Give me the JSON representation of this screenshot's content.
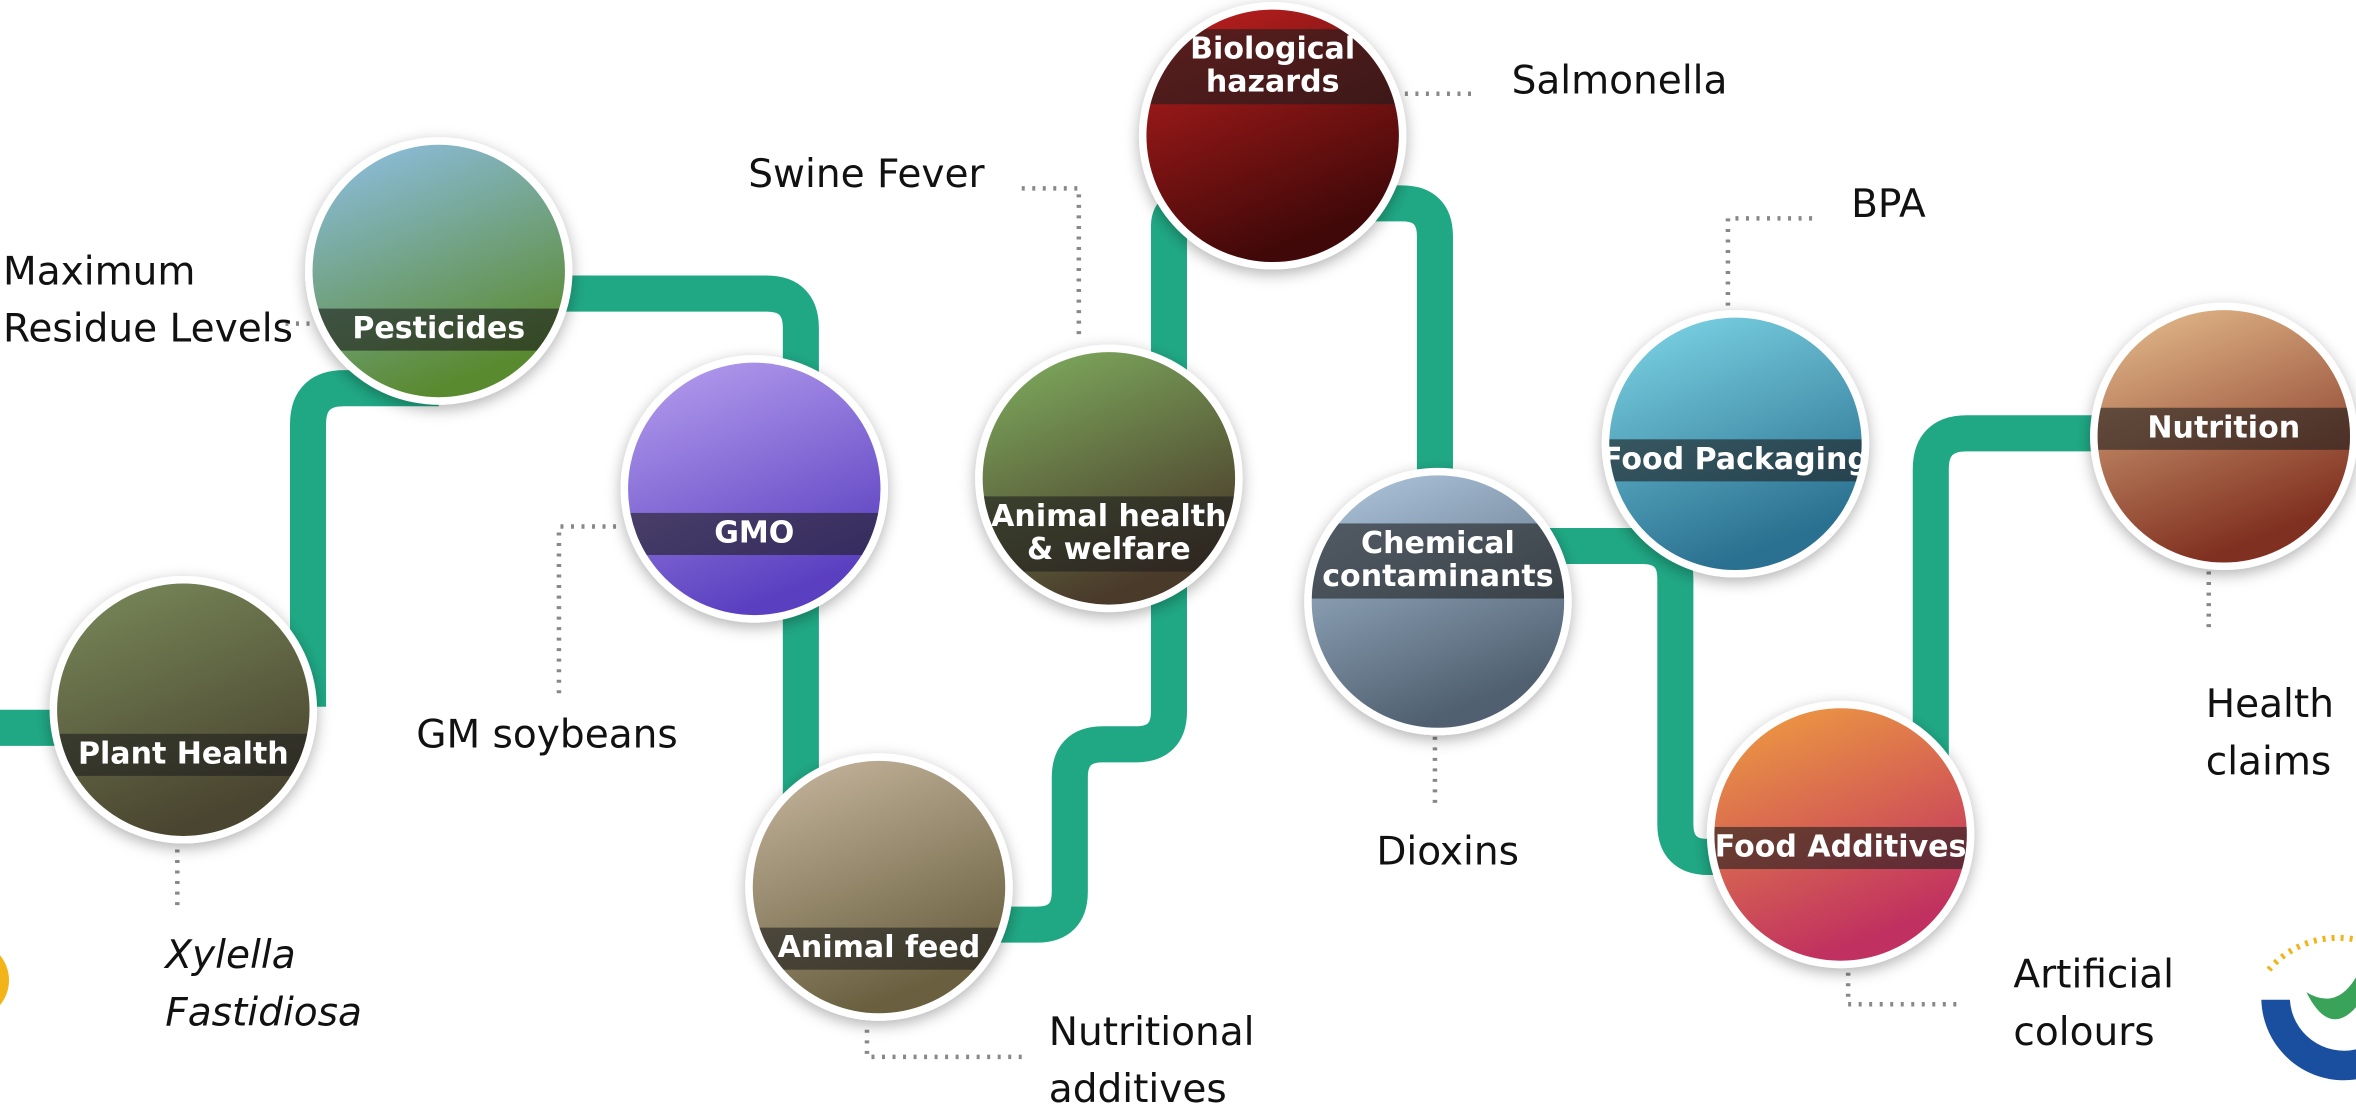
{
  "nodes": [
    {
      "label": [
        "Plant Health"
      ],
      "example": [
        "Xylella",
        "Fastidiosa"
      ]
    },
    {
      "label": [
        "Pesticides"
      ],
      "example": [
        "Maximum",
        "Residue Levels"
      ]
    },
    {
      "label": [
        "GMO"
      ],
      "example": [
        "GM soybeans"
      ]
    },
    {
      "label": [
        "Animal feed"
      ],
      "example": [
        "Nutritional",
        "additives"
      ]
    },
    {
      "label": [
        "Animal health",
        "& welfare"
      ],
      "example": [
        "Swine Fever"
      ]
    },
    {
      "label": [
        "Biological",
        "hazards"
      ],
      "example": [
        "Salmonella"
      ]
    },
    {
      "label": [
        "Chemical",
        "contaminants"
      ],
      "example": [
        "Dioxins"
      ]
    },
    {
      "label": [
        "Food Packaging"
      ],
      "example": [
        "BPA"
      ]
    },
    {
      "label": [
        "Food Additives"
      ],
      "example": [
        "Artificial",
        "colours"
      ]
    },
    {
      "label": [
        "Nutrition"
      ],
      "example": [
        "Health",
        "claims"
      ]
    }
  ]
}
